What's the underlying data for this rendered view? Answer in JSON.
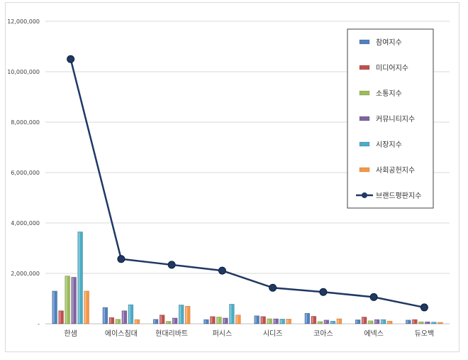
{
  "chart_data": {
    "type": "bar",
    "categories": [
      "한샘",
      "에이스침대",
      "현대리바트",
      "퍼시스",
      "시디즈",
      "코아스",
      "에넥스",
      "듀오백"
    ],
    "y_ticks": [
      "-",
      "2,000,000",
      "4,000,000",
      "6,000,000",
      "8,000,000",
      "10,000,000",
      "12,000,000"
    ],
    "ylim": [
      0,
      12000000
    ],
    "grid": true,
    "legend_position": "right",
    "series": [
      {
        "name": "참여지수",
        "type": "bar",
        "color": "#4f81bd",
        "values": [
          1300000,
          650000,
          180000,
          170000,
          320000,
          420000,
          160000,
          150000
        ]
      },
      {
        "name": "미디어지수",
        "type": "bar",
        "color": "#c0504d",
        "values": [
          520000,
          250000,
          350000,
          290000,
          290000,
          300000,
          270000,
          170000
        ]
      },
      {
        "name": "소통지수",
        "type": "bar",
        "color": "#9bbb59",
        "values": [
          1900000,
          180000,
          100000,
          270000,
          200000,
          90000,
          120000,
          80000
        ]
      },
      {
        "name": "커뮤니티지수",
        "type": "bar",
        "color": "#8064a2",
        "values": [
          1850000,
          520000,
          230000,
          230000,
          200000,
          150000,
          170000,
          80000
        ]
      },
      {
        "name": "시장지수",
        "type": "bar",
        "color": "#4bacc6",
        "values": [
          3650000,
          760000,
          750000,
          780000,
          190000,
          110000,
          170000,
          70000
        ]
      },
      {
        "name": "사회공헌지수",
        "type": "bar",
        "color": "#f79646",
        "values": [
          1300000,
          170000,
          700000,
          350000,
          190000,
          200000,
          110000,
          60000
        ]
      },
      {
        "name": "브랜드평판지수",
        "type": "line",
        "color": "#1f3864",
        "values": [
          10500000,
          2570000,
          2340000,
          2110000,
          1430000,
          1260000,
          1060000,
          650000
        ]
      }
    ]
  }
}
